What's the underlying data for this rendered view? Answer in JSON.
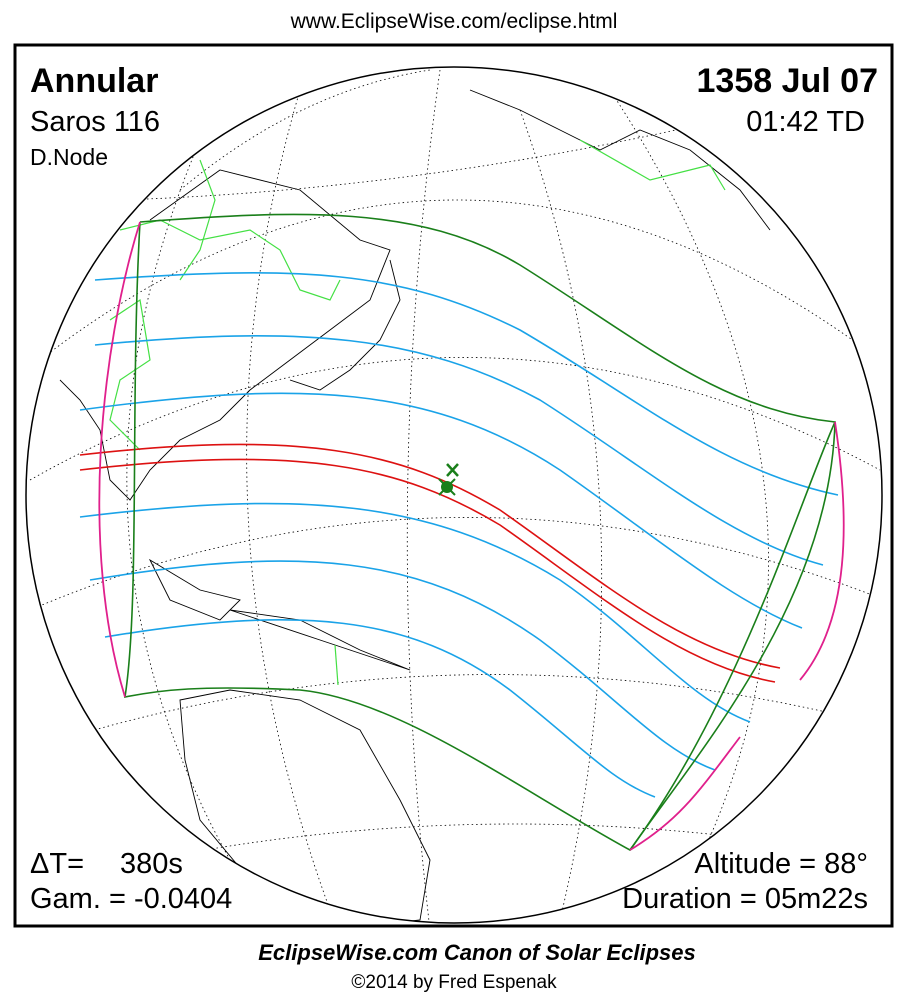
{
  "header": {
    "url": "www.EclipseWise.com/eclipse.html"
  },
  "panel": {
    "eclipse_type": "Annular",
    "saros": "Saros 116",
    "node": "D.Node",
    "date": "1358 Jul 07",
    "time": "01:42 TD",
    "delta_t_label": "ΔT=",
    "delta_t_value": "380s",
    "gamma": "Gam. = -0.0404",
    "altitude": "Altitude = 88°",
    "duration": "Duration = 05m22s"
  },
  "footer": {
    "title": "EclipseWise.com Canon of Solar Eclipses",
    "credit": "©2014 by Fred Espenak"
  }
}
